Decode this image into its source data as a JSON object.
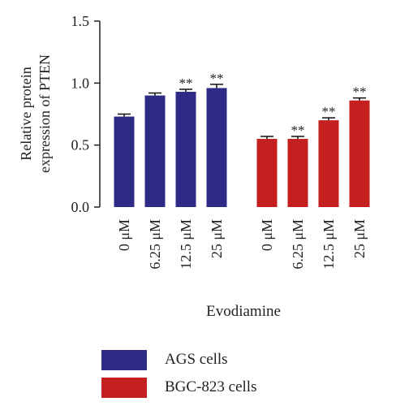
{
  "chart_data": {
    "type": "bar",
    "ylabel": "Relative protein expression of PTEN",
    "ylabel_lines": [
      "Relative protein",
      "expression of PTEN"
    ],
    "xlabel": "Evodiamine",
    "ylim": [
      0,
      1.5
    ],
    "yticks": [
      "0.0",
      "0.5",
      "1.0",
      "1.5"
    ],
    "legend_position": "bottom",
    "groups": [
      {
        "name": "AGS cells",
        "color": "#2e2b86",
        "categories": [
          "0 μM",
          "6.25 μM",
          "12.5 μM",
          "25 μM"
        ],
        "values": [
          0.73,
          0.9,
          0.93,
          0.96
        ],
        "errors": [
          0.02,
          0.02,
          0.02,
          0.03
        ],
        "annotations": [
          "",
          "",
          "**",
          "**"
        ]
      },
      {
        "name": "BGC-823 cells",
        "color": "#c4201f",
        "categories": [
          "0 μM",
          "6.25 μM",
          "12.5 μM",
          "25 μM"
        ],
        "values": [
          0.55,
          0.55,
          0.7,
          0.86
        ],
        "errors": [
          0.02,
          0.02,
          0.02,
          0.02
        ],
        "annotations": [
          "",
          "**",
          "**",
          "**"
        ]
      }
    ]
  },
  "legend": {
    "items": [
      {
        "label": "AGS cells",
        "color": "#2e2b86"
      },
      {
        "label": "BGC-823 cells",
        "color": "#c4201f"
      }
    ]
  }
}
